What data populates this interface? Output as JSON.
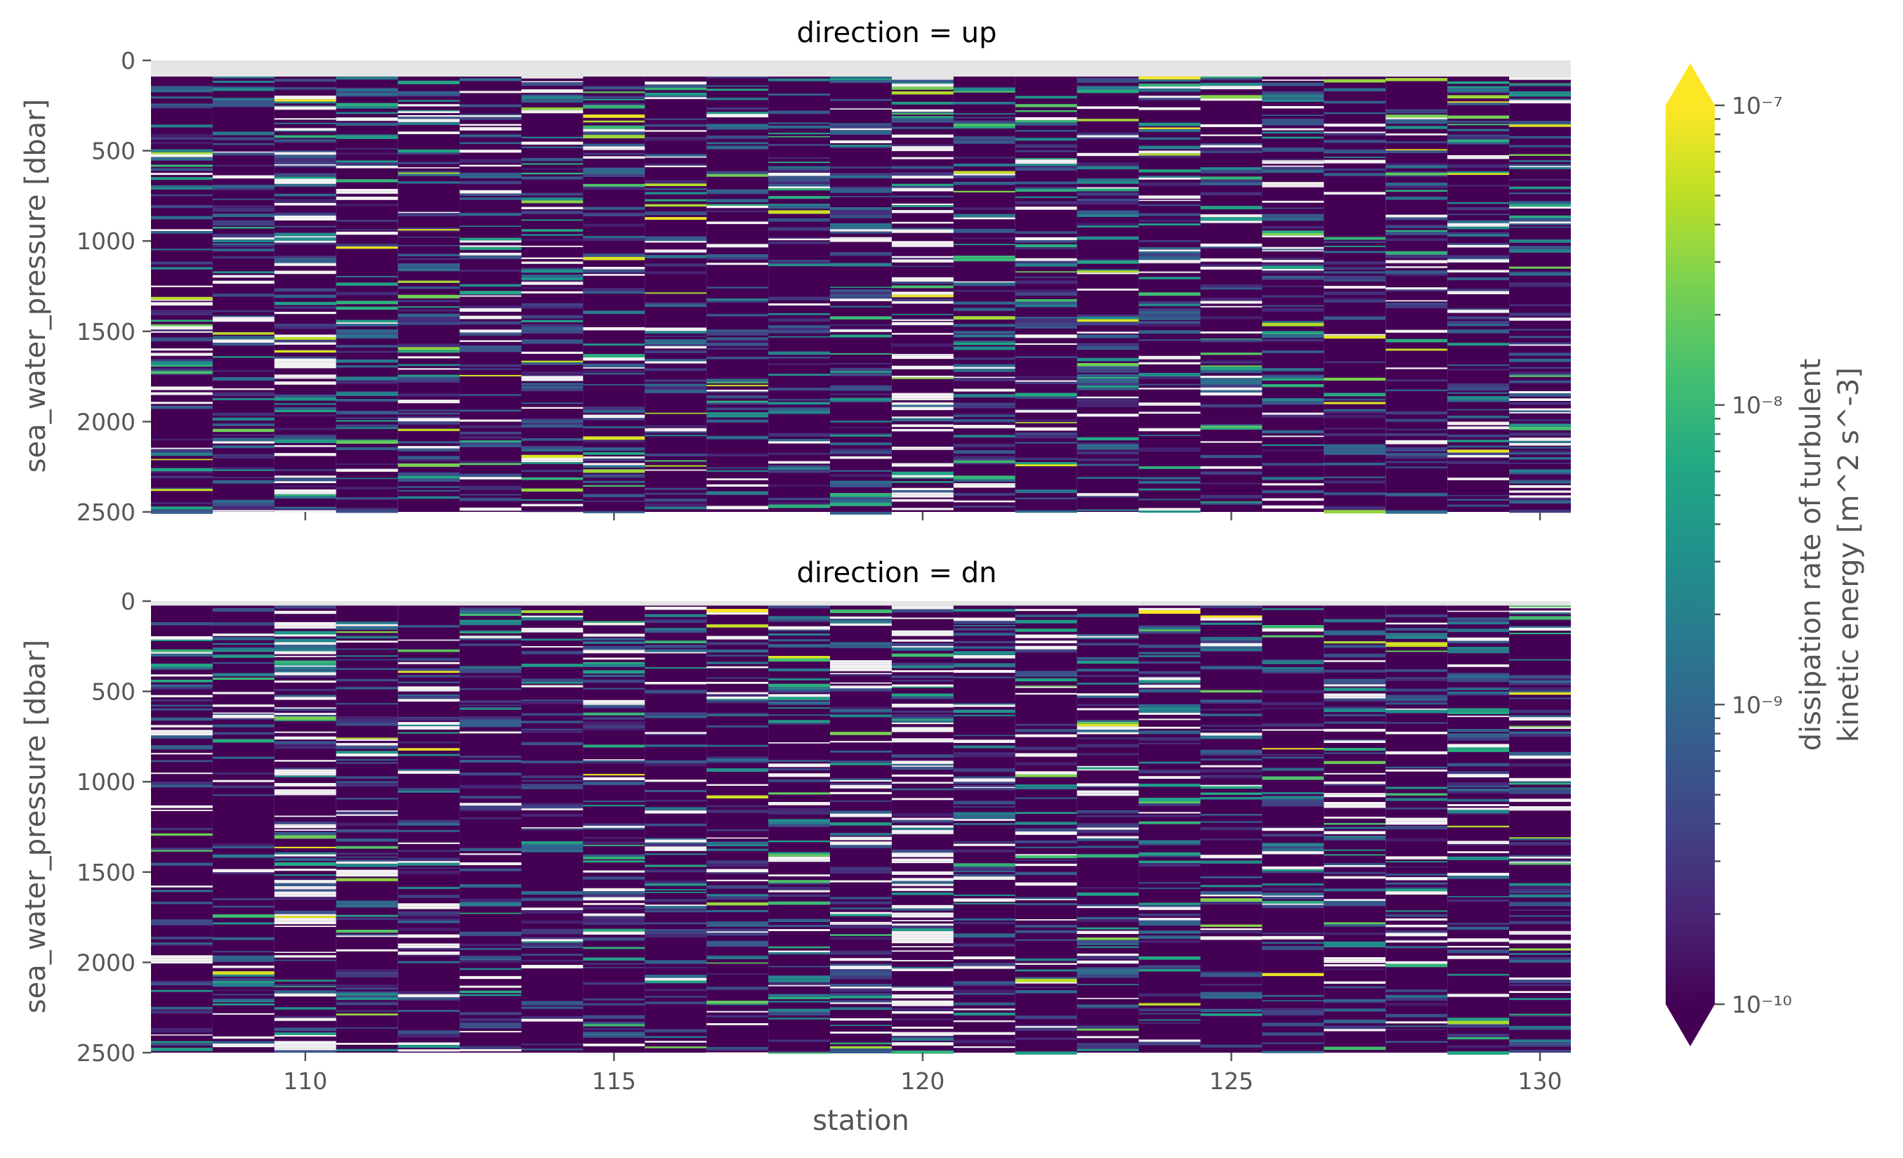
{
  "chart_data": {
    "type": "heatmap",
    "xlabel": "station",
    "ylabel": "sea_water_pressure [dbar]",
    "x_ticks": [
      "110",
      "115",
      "120",
      "125",
      "130"
    ],
    "y_ticks": [
      "0",
      "500",
      "1000",
      "1500",
      "2000",
      "2500"
    ],
    "xlim": [
      107.5,
      130.5
    ],
    "ylim": [
      2500,
      0
    ],
    "stations": [
      108,
      109,
      110,
      111,
      112,
      113,
      114,
      115,
      116,
      117,
      118,
      119,
      120,
      121,
      122,
      123,
      124,
      125,
      126,
      127,
      128,
      129,
      130
    ],
    "colormap": "viridis",
    "colorbar": {
      "label_line1": "dissipation rate of turbulent",
      "label_line2": "kinetic energy [m^2 s^-3]",
      "scale": "log",
      "range": [
        1e-10,
        1e-07
      ],
      "tick_labels": [
        "10⁻¹⁰",
        "10⁻⁹",
        "10⁻⁸",
        "10⁻⁷"
      ],
      "extend": "both"
    },
    "panels": [
      {
        "title": "direction = up",
        "data_start_dbar": 90
      },
      {
        "title": "direction = dn",
        "data_start_dbar": 25
      }
    ],
    "missing_color": "#e5e5e5",
    "note": "per-station dissipation profiles; dominant values near 1e-10 with sparse bands up to ~1e-7"
  }
}
